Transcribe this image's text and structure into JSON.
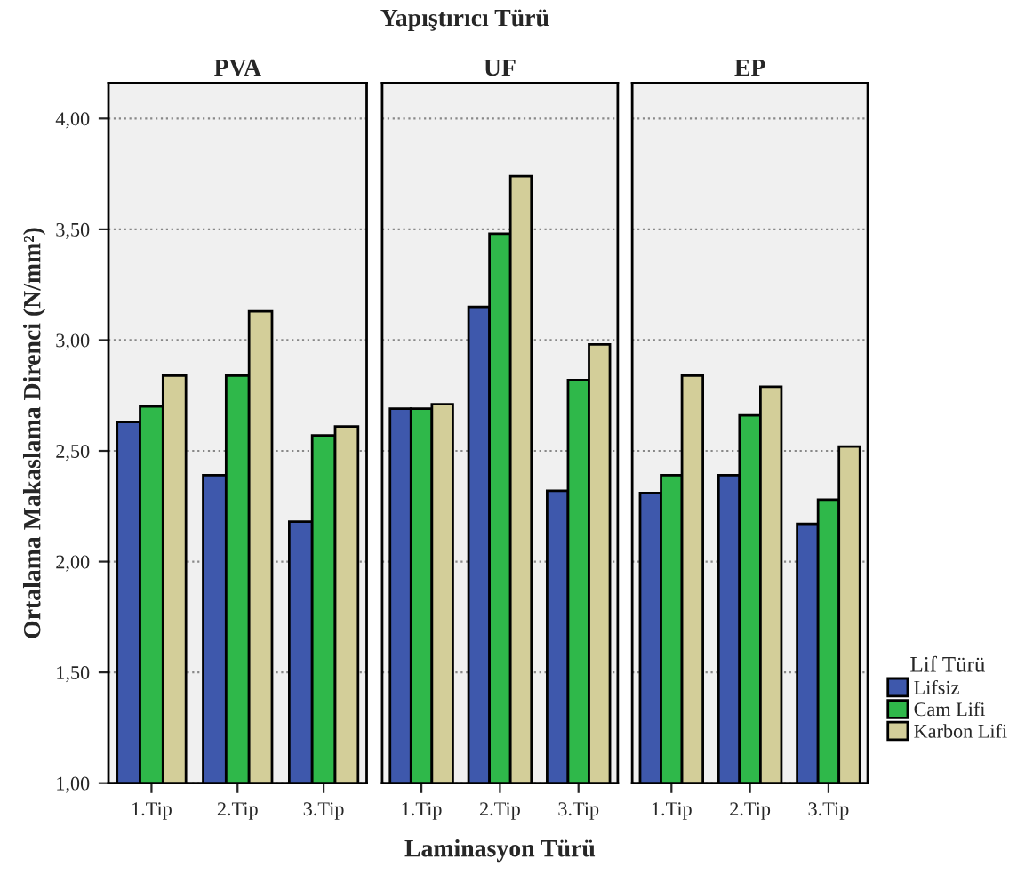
{
  "chart_data": [
    {
      "type": "bar",
      "title": "PVA",
      "ylabel": "Ortalama Makaslama Direnci (N/mm²)",
      "annotations": [
        "Yapıştırıcı Türü"
      ],
      "categories": [
        "1.Tip",
        "2.Tip",
        "3.Tip"
      ],
      "series": [
        {
          "color": "#3e58ac",
          "values": [
            2.63,
            2.39,
            2.18
          ]
        },
        {
          "color": "#2fb84a",
          "values": [
            2.7,
            2.84,
            2.57
          ]
        },
        {
          "color": "#d3ce99",
          "values": [
            2.84,
            3.13,
            2.61
          ]
        }
      ],
      "ylim": [
        1,
        4.16
      ],
      "yticks": [
        {
          "value": 1,
          "label": "1,00"
        },
        {
          "value": 1.5,
          "label": "1,50"
        },
        {
          "value": 2,
          "label": "2,00"
        },
        {
          "value": 2.5,
          "label": "2,50"
        },
        {
          "value": 3,
          "label": "3,00"
        },
        {
          "value": 3.5,
          "label": "3,50"
        },
        {
          "value": 4,
          "label": "4,00"
        }
      ],
      "grid": "y"
    },
    {
      "type": "bar",
      "title": "UF",
      "xlabel": "Laminasyon Türü",
      "categories": [
        "1.Tip",
        "2.Tip",
        "3.Tip"
      ],
      "series": [
        {
          "color": "#3e58ac",
          "values": [
            2.69,
            3.15,
            2.32
          ]
        },
        {
          "color": "#2fb84a",
          "values": [
            2.69,
            3.48,
            2.82
          ]
        },
        {
          "color": "#d3ce99",
          "values": [
            2.71,
            3.74,
            2.98
          ]
        }
      ],
      "ylim": [
        1,
        4.16
      ],
      "grid": "y",
      "tick_labels": "x"
    },
    {
      "type": "bar",
      "title": "EP",
      "legend_title": "Lif Türü",
      "categories": [
        "1.Tip",
        "2.Tip",
        "3.Tip"
      ],
      "series": [
        {
          "name": "Lifsiz",
          "color": "#3e58ac",
          "values": [
            2.31,
            2.39,
            2.17
          ]
        },
        {
          "name": "Cam Lifi",
          "color": "#2fb84a",
          "values": [
            2.39,
            2.66,
            2.28
          ]
        },
        {
          "name": "Karbon Lifi",
          "color": "#d3ce99",
          "values": [
            2.84,
            2.79,
            2.52
          ]
        }
      ],
      "ylim": [
        1,
        4.16
      ],
      "grid": "y",
      "legend": "right",
      "tick_labels": "x"
    }
  ]
}
